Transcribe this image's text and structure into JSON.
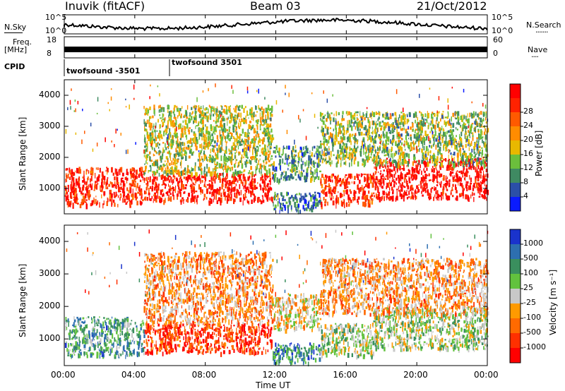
{
  "header": {
    "station": "Inuvik (fitACF)",
    "beam": "Beam 03",
    "date": "21/Oct/2012"
  },
  "strip_panels": {
    "nsky_label": "N.Sky",
    "nsky_ticks": [
      "10^5",
      "10^0"
    ],
    "nsearch_label": "N.Search",
    "nsearch_ticks": [
      "10^5",
      "10^0"
    ],
    "nsearch_marker": "·······",
    "freq_label": "Freq.",
    "freq_unit": "[MHz]",
    "freq_ticks": [
      "18",
      "8"
    ],
    "nave_label": "Nave",
    "nave_ticks": [
      "60",
      "0"
    ],
    "nave_marker": "····",
    "cpid_label": "CPID",
    "cpid_entries": [
      "twofsound -3501",
      "twofsound 3501"
    ]
  },
  "x_axis": {
    "label": "Time UT",
    "ticks": [
      "00:00",
      "04:00",
      "08:00",
      "12:00",
      "16:00",
      "20:00",
      "00:00"
    ]
  },
  "chart_data": [
    {
      "type": "heatmap",
      "quantity": "power",
      "ylabel": "Slant Range [km]",
      "yticks": [
        1000,
        2000,
        3000,
        4000
      ],
      "ylim": [
        180,
        4500
      ],
      "xlim_hours": [
        0,
        24
      ],
      "colorbar": {
        "label": "Power [dB]",
        "ticks": [
          "4",
          "8",
          "12",
          "16",
          "20",
          "24",
          "28"
        ],
        "colors": [
          "#0a1bff",
          "#2b4fa8",
          "#3f8a62",
          "#6bbf3c",
          "#e8b800",
          "#ff8c00",
          "#ff5a00",
          "#ff2200",
          "#ff0000"
        ]
      },
      "regions": [
        {
          "t0": 0.0,
          "t1": 4.5,
          "r0": 500,
          "r1": 1700,
          "level": 0.85
        },
        {
          "t0": 4.5,
          "t1": 11.8,
          "r0": 600,
          "r1": 1500,
          "level": 0.9
        },
        {
          "t0": 4.5,
          "t1": 11.8,
          "r0": 1500,
          "r1": 3700,
          "level": 0.45
        },
        {
          "t0": 11.8,
          "t1": 14.5,
          "r0": 300,
          "r1": 900,
          "level": 0.25
        },
        {
          "t0": 11.8,
          "t1": 14.5,
          "r0": 1300,
          "r1": 2400,
          "level": 0.3
        },
        {
          "t0": 14.5,
          "t1": 17.5,
          "r0": 500,
          "r1": 1500,
          "level": 0.85
        },
        {
          "t0": 17.5,
          "t1": 24.0,
          "r0": 700,
          "r1": 2000,
          "level": 0.95
        },
        {
          "t0": 14.5,
          "t1": 24.0,
          "r0": 1800,
          "r1": 3500,
          "level": 0.4
        }
      ]
    },
    {
      "type": "heatmap",
      "quantity": "velocity",
      "ylabel": "Slant Range [km]",
      "yticks": [
        1000,
        2000,
        3000,
        4000
      ],
      "ylim": [
        180,
        4500
      ],
      "xlim_hours": [
        0,
        24
      ],
      "colorbar": {
        "label": "Velocity [m s⁻¹]",
        "ticks": [
          "1000",
          "500",
          "100",
          "25",
          "-25",
          "-100",
          "-500",
          "-1000"
        ],
        "colors": [
          "#1a33cc",
          "#2d6fb0",
          "#3a8f5e",
          "#62c23e",
          "#c8c8c8",
          "#ff9a00",
          "#ff6a00",
          "#ff3000",
          "#ff0000"
        ]
      },
      "regions": [
        {
          "t0": 0.0,
          "t1": 4.5,
          "r0": 500,
          "r1": 1700,
          "level": 0.3
        },
        {
          "t0": 4.5,
          "t1": 11.8,
          "r0": 600,
          "r1": 1500,
          "level": 0.85
        },
        {
          "t0": 4.5,
          "t1": 11.8,
          "r0": 1500,
          "r1": 3700,
          "level": 0.65
        },
        {
          "t0": 11.8,
          "t1": 14.5,
          "r0": 300,
          "r1": 900,
          "level": 0.25
        },
        {
          "t0": 11.8,
          "t1": 14.5,
          "r0": 1300,
          "r1": 2400,
          "level": 0.55
        },
        {
          "t0": 14.5,
          "t1": 17.5,
          "r0": 500,
          "r1": 1500,
          "level": 0.45
        },
        {
          "t0": 17.5,
          "t1": 24.0,
          "r0": 700,
          "r1": 2000,
          "level": 0.45
        },
        {
          "t0": 14.5,
          "t1": 24.0,
          "r0": 1800,
          "r1": 3500,
          "level": 0.65
        }
      ]
    }
  ]
}
